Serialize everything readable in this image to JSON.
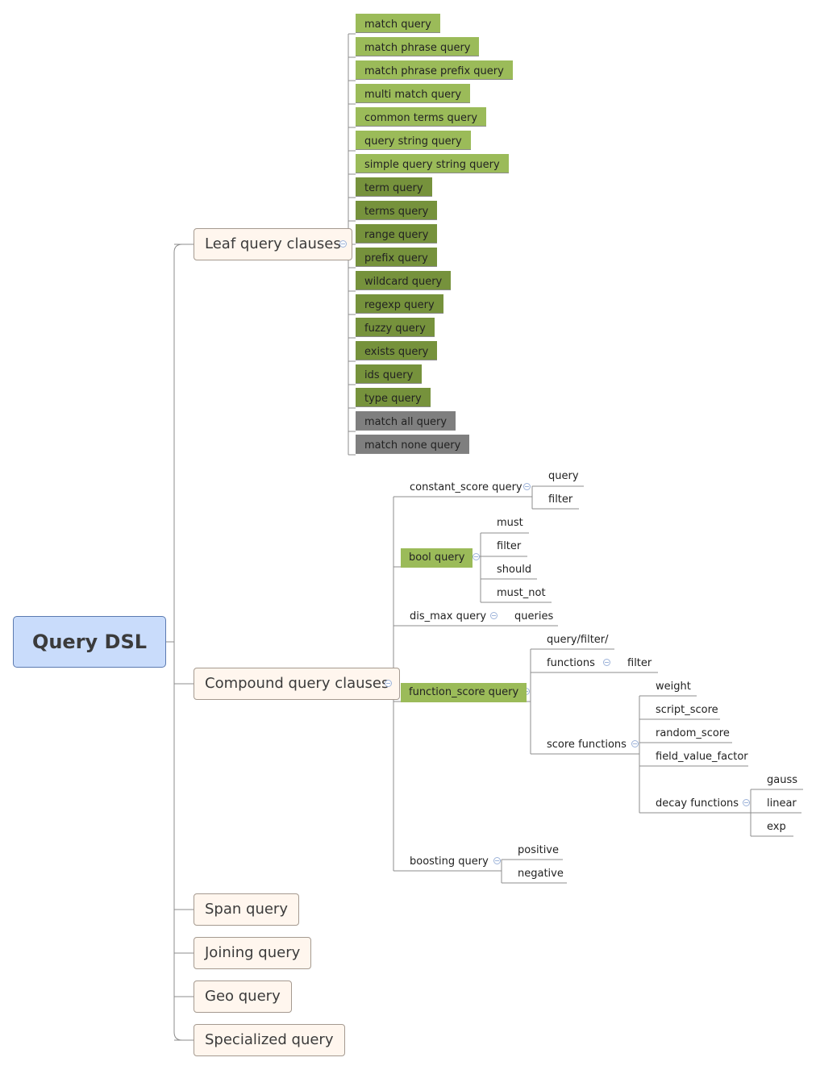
{
  "root": {
    "label": "Query DSL"
  },
  "categories": {
    "leaf": "Leaf query clauses",
    "compound": "Compound query clauses",
    "span": "Span query",
    "joining": "Joining query",
    "geo": "Geo query",
    "specialized": "Specialized query"
  },
  "leaf_queries": [
    "match query",
    "match phrase query",
    "match phrase prefix query",
    "multi match query",
    "common terms query",
    "query string query",
    "simple query string query",
    "term query",
    "terms query",
    "range query",
    "prefix query",
    "wildcard query",
    "regexp query",
    "fuzzy query",
    "exists query",
    "ids query",
    "type query",
    "match all query",
    "match none query"
  ],
  "compound": {
    "constant_score": {
      "label": "constant_score query",
      "children": [
        "query",
        "filter"
      ]
    },
    "bool": {
      "label": "bool query",
      "children": [
        "must",
        "filter",
        "should",
        "must_not"
      ]
    },
    "dis_max": {
      "label": "dis_max query",
      "children": [
        "queries"
      ]
    },
    "function_score": {
      "label": "function_score query",
      "query_filter": "query/filter/",
      "functions": {
        "label": "functions",
        "child": "filter"
      },
      "score_functions": {
        "label": "score functions",
        "children": [
          "weight",
          "script_score",
          "random_score",
          "field_value_factor"
        ],
        "decay": {
          "label": "decay functions",
          "children": [
            "gauss",
            "linear",
            "exp"
          ]
        }
      }
    },
    "boosting": {
      "label": "boosting query",
      "children": [
        "positive",
        "negative"
      ]
    }
  },
  "colors": {
    "root_fill": "#c9dcfb",
    "category_fill": "#fff6ee",
    "full_text_fill": "#9bbb59",
    "term_level_fill": "#76923c",
    "match_all_fill": "#7f7f7f",
    "connector": "#8c8c8c"
  }
}
